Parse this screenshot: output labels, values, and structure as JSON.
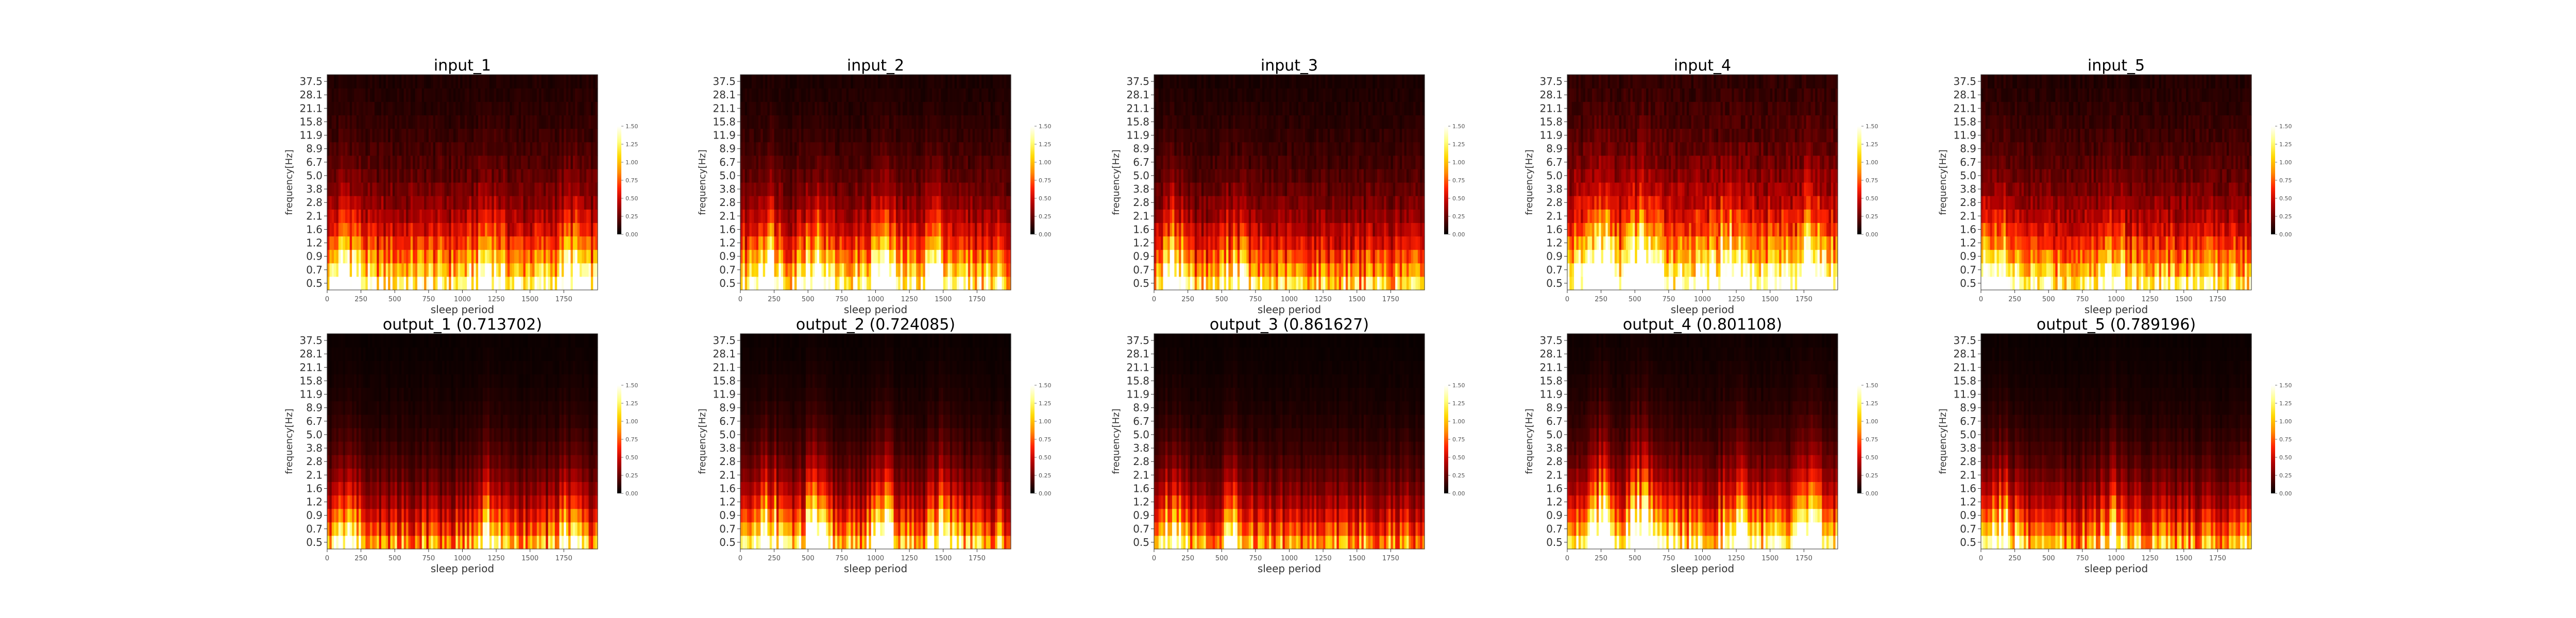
{
  "layout": {
    "rows": 2,
    "cols": 5
  },
  "colormap": [
    "#000000",
    "#5a0000",
    "#b30000",
    "#ff2200",
    "#ff8c00",
    "#ffd800",
    "#ffff80",
    "#ffffff"
  ],
  "colorbar": {
    "min": 0,
    "max": 1.5,
    "ticks": [
      0,
      0.25,
      0.5,
      0.75,
      1.0,
      1.25,
      1.5
    ],
    "tick_labels": [
      "0.00",
      "0.25",
      "0.50",
      "0.75",
      "1.00",
      "1.25",
      "1.50"
    ]
  },
  "chart_data": [
    {
      "type": "heatmap",
      "title": "input_1",
      "xlabel": "sleep period",
      "ylabel": "frequency[Hz]",
      "xlim": [
        0,
        2000
      ],
      "xticks": [
        0,
        250,
        500,
        750,
        1000,
        1250,
        1500,
        1750
      ],
      "yticks": [
        "0.5",
        "0.7",
        "0.9",
        "1.2",
        "1.6",
        "2.1",
        "2.8",
        "3.8",
        "5.0",
        "6.7",
        "8.9",
        "11.9",
        "15.8",
        "21.1",
        "28.1",
        "37.5"
      ],
      "intensity_profile": {
        "low_freq_peak": 0.95,
        "hotspots": [
          [
            150,
            1.2
          ],
          [
            1200,
            0.9
          ],
          [
            1800,
            0.9
          ]
        ],
        "background": 0.35
      }
    },
    {
      "type": "heatmap",
      "title": "input_2",
      "xlabel": "sleep period",
      "ylabel": "frequency[Hz]",
      "xlim": [
        0,
        2000
      ],
      "xticks": [
        0,
        250,
        500,
        750,
        1000,
        1250,
        1500,
        1750
      ],
      "yticks": [
        "0.5",
        "0.7",
        "0.9",
        "1.2",
        "1.6",
        "2.1",
        "2.8",
        "3.8",
        "5.0",
        "6.7",
        "8.9",
        "11.9",
        "15.8",
        "21.1",
        "28.1",
        "37.5"
      ],
      "intensity_profile": {
        "low_freq_peak": 1.0,
        "hotspots": [
          [
            200,
            1.3
          ],
          [
            550,
            1.2
          ],
          [
            1050,
            1.2
          ],
          [
            1450,
            1.0
          ]
        ],
        "background": 0.3
      }
    },
    {
      "type": "heatmap",
      "title": "input_3",
      "xlabel": "sleep period",
      "ylabel": "frequency[Hz]",
      "xlim": [
        0,
        2000
      ],
      "xticks": [
        0,
        250,
        500,
        750,
        1000,
        1250,
        1500,
        1750
      ],
      "yticks": [
        "0.5",
        "0.7",
        "0.9",
        "1.2",
        "1.6",
        "2.1",
        "2.8",
        "3.8",
        "5.0",
        "6.7",
        "8.9",
        "11.9",
        "15.8",
        "21.1",
        "28.1",
        "37.5"
      ],
      "intensity_profile": {
        "low_freq_peak": 0.8,
        "hotspots": [
          [
            150,
            1.3
          ],
          [
            600,
            0.8
          ]
        ],
        "background": 0.3
      }
    },
    {
      "type": "heatmap",
      "title": "input_4",
      "xlabel": "sleep period",
      "ylabel": "frequency[Hz]",
      "xlim": [
        0,
        2000
      ],
      "xticks": [
        0,
        250,
        500,
        750,
        1000,
        1250,
        1500,
        1750
      ],
      "yticks": [
        "0.5",
        "0.7",
        "0.9",
        "1.2",
        "1.6",
        "2.1",
        "2.8",
        "3.8",
        "5.0",
        "6.7",
        "8.9",
        "11.9",
        "15.8",
        "21.1",
        "28.1",
        "37.5"
      ],
      "intensity_profile": {
        "low_freq_peak": 1.1,
        "hotspots": [
          [
            250,
            1.6
          ],
          [
            550,
            1.6
          ],
          [
            1200,
            1.1
          ],
          [
            1800,
            1.0
          ]
        ],
        "background": 0.55
      }
    },
    {
      "type": "heatmap",
      "title": "input_5",
      "xlabel": "sleep period",
      "ylabel": "frequency[Hz]",
      "xlim": [
        0,
        2000
      ],
      "xticks": [
        0,
        250,
        500,
        750,
        1000,
        1250,
        1500,
        1750
      ],
      "yticks": [
        "0.5",
        "0.7",
        "0.9",
        "1.2",
        "1.6",
        "2.1",
        "2.8",
        "3.8",
        "5.0",
        "6.7",
        "8.9",
        "11.9",
        "15.8",
        "21.1",
        "28.1",
        "37.5"
      ],
      "intensity_profile": {
        "low_freq_peak": 0.9,
        "hotspots": [
          [
            100,
            1.3
          ],
          [
            1000,
            0.8
          ]
        ],
        "background": 0.4
      }
    },
    {
      "type": "heatmap",
      "title": "output_1 (0.713702)",
      "xlabel": "sleep period",
      "ylabel": "frequency[Hz]",
      "xlim": [
        0,
        2000
      ],
      "xticks": [
        0,
        250,
        500,
        750,
        1000,
        1250,
        1500,
        1750
      ],
      "yticks": [
        "0.5",
        "0.7",
        "0.9",
        "1.2",
        "1.6",
        "2.1",
        "2.8",
        "3.8",
        "5.0",
        "6.7",
        "8.9",
        "11.9",
        "15.8",
        "21.1",
        "28.1",
        "37.5"
      ],
      "intensity_profile": {
        "low_freq_peak": 0.8,
        "hotspots": [
          [
            150,
            1.0
          ],
          [
            1200,
            0.8
          ],
          [
            1800,
            0.8
          ]
        ],
        "background": 0.1
      }
    },
    {
      "type": "heatmap",
      "title": "output_2 (0.724085)",
      "xlabel": "sleep period",
      "ylabel": "frequency[Hz]",
      "xlim": [
        0,
        2000
      ],
      "xticks": [
        0,
        250,
        500,
        750,
        1000,
        1250,
        1500,
        1750
      ],
      "yticks": [
        "0.5",
        "0.7",
        "0.9",
        "1.2",
        "1.6",
        "2.1",
        "2.8",
        "3.8",
        "5.0",
        "6.7",
        "8.9",
        "11.9",
        "15.8",
        "21.1",
        "28.1",
        "37.5"
      ],
      "intensity_profile": {
        "low_freq_peak": 0.9,
        "hotspots": [
          [
            200,
            1.3
          ],
          [
            550,
            1.2
          ],
          [
            1050,
            1.2
          ],
          [
            1500,
            1.1
          ]
        ],
        "background": 0.1
      }
    },
    {
      "type": "heatmap",
      "title": "output_3 (0.861627)",
      "xlabel": "sleep period",
      "ylabel": "frequency[Hz]",
      "xlim": [
        0,
        2000
      ],
      "xticks": [
        0,
        250,
        500,
        750,
        1000,
        1250,
        1500,
        1750
      ],
      "yticks": [
        "0.5",
        "0.7",
        "0.9",
        "1.2",
        "1.6",
        "2.1",
        "2.8",
        "3.8",
        "5.0",
        "6.7",
        "8.9",
        "11.9",
        "15.8",
        "21.1",
        "28.1",
        "37.5"
      ],
      "intensity_profile": {
        "low_freq_peak": 0.8,
        "hotspots": [
          [
            150,
            1.3
          ],
          [
            600,
            0.8
          ]
        ],
        "background": 0.1
      }
    },
    {
      "type": "heatmap",
      "title": "output_4 (0.801108)",
      "xlabel": "sleep period",
      "ylabel": "frequency[Hz]",
      "xlim": [
        0,
        2000
      ],
      "xticks": [
        0,
        250,
        500,
        750,
        1000,
        1250,
        1500,
        1750
      ],
      "yticks": [
        "0.5",
        "0.7",
        "0.9",
        "1.2",
        "1.6",
        "2.1",
        "2.8",
        "3.8",
        "5.0",
        "6.7",
        "8.9",
        "11.9",
        "15.8",
        "21.1",
        "28.1",
        "37.5"
      ],
      "intensity_profile": {
        "low_freq_peak": 1.1,
        "hotspots": [
          [
            250,
            1.7
          ],
          [
            550,
            1.7
          ],
          [
            1250,
            1.1
          ],
          [
            1800,
            1.0
          ]
        ],
        "background": 0.15
      }
    },
    {
      "type": "heatmap",
      "title": "output_5 (0.789196)",
      "xlabel": "sleep period",
      "ylabel": "frequency[Hz]",
      "xlim": [
        0,
        2000
      ],
      "xticks": [
        0,
        250,
        500,
        750,
        1000,
        1250,
        1500,
        1750
      ],
      "yticks": [
        "0.5",
        "0.7",
        "0.9",
        "1.2",
        "1.6",
        "2.1",
        "2.8",
        "3.8",
        "5.0",
        "6.7",
        "8.9",
        "11.9",
        "15.8",
        "21.1",
        "28.1",
        "37.5"
      ],
      "intensity_profile": {
        "low_freq_peak": 0.9,
        "hotspots": [
          [
            150,
            1.2
          ],
          [
            1000,
            0.9
          ]
        ],
        "background": 0.1
      }
    }
  ]
}
